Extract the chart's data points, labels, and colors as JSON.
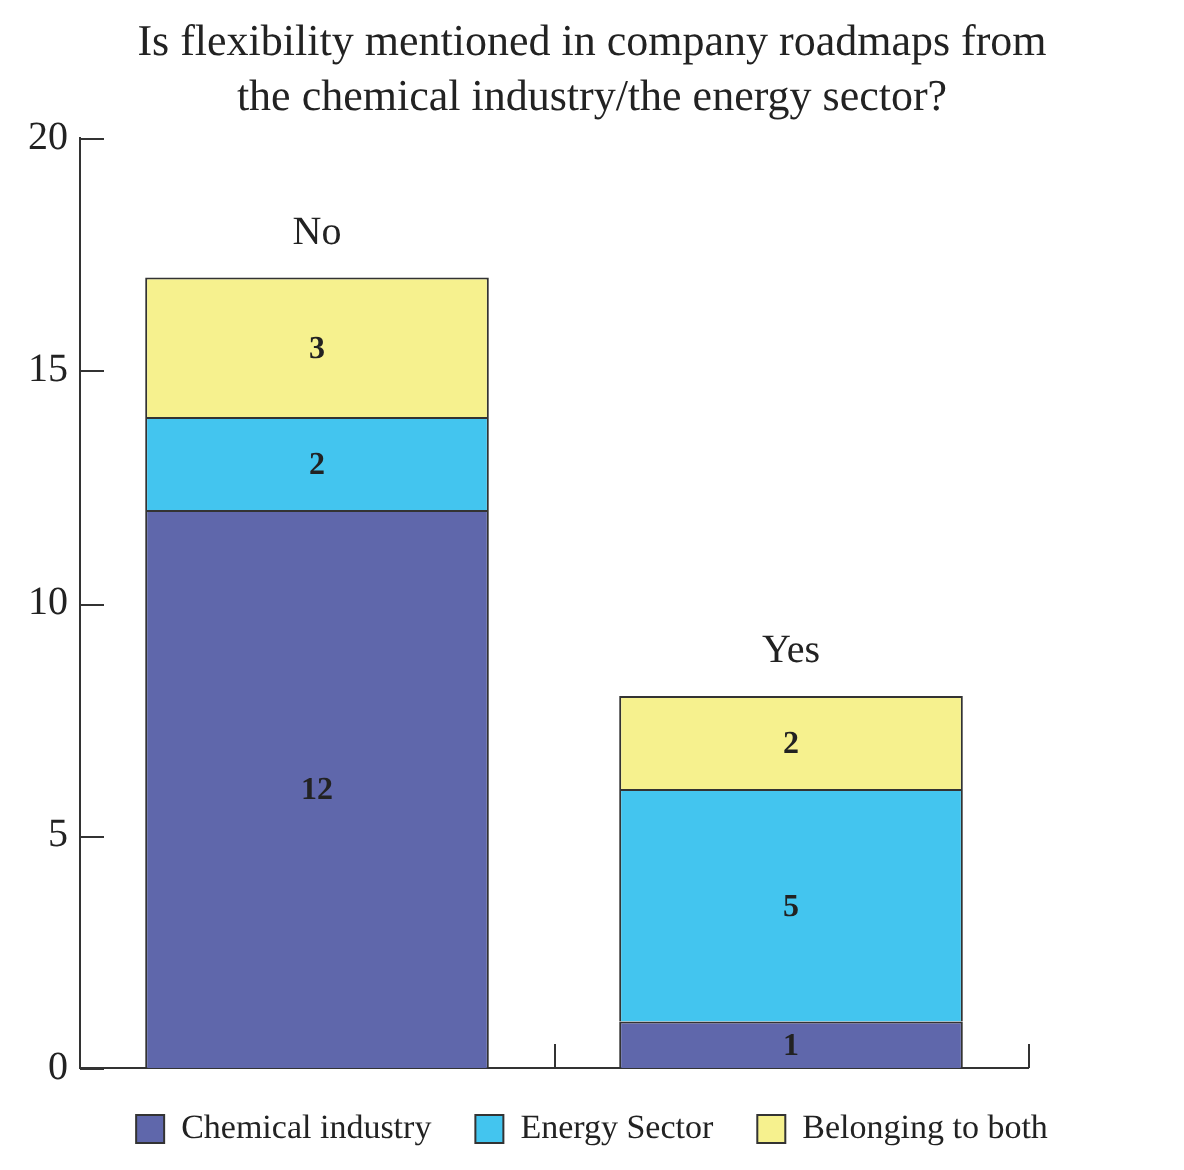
{
  "chart_data": {
    "type": "bar",
    "title": "Is flexibility mentioned in company roadmaps from the chemical industry/the energy sector?",
    "categories": [
      "No",
      "Yes"
    ],
    "stacked": true,
    "series": [
      {
        "name": "Chemical industry",
        "color": "#5f67ab",
        "values": [
          12,
          1
        ]
      },
      {
        "name": "Energy Sector",
        "color": "#43c5ef",
        "values": [
          2,
          5
        ]
      },
      {
        "name": "Belonging to both",
        "color": "#f6f18e",
        "values": [
          3,
          2
        ]
      }
    ],
    "ylim": [
      0,
      20
    ],
    "yticks": [
      0,
      5,
      10,
      15,
      20
    ],
    "grid": false,
    "legend": "bottom",
    "data_labels": true
  }
}
